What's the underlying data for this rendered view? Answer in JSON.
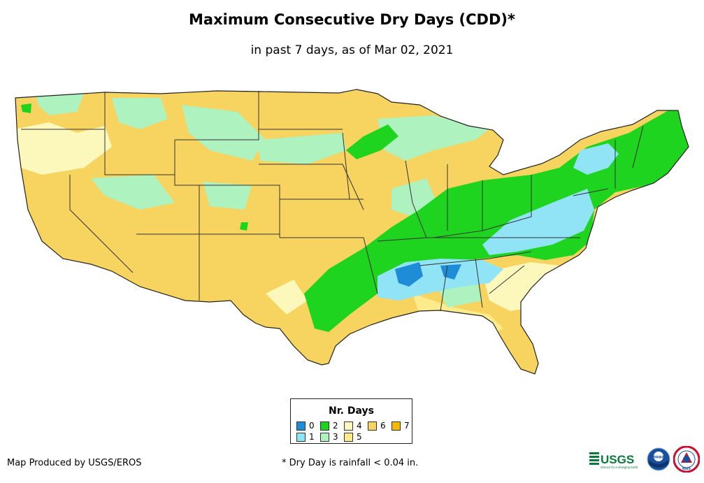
{
  "title": "Maximum Consecutive Dry Days (CDD)*",
  "subtitle": "in past 7 days, as of Mar 02, 2021",
  "legend": {
    "title": "Nr. Days",
    "items": [
      {
        "label": "0",
        "color": "#1e8cd6"
      },
      {
        "label": "1",
        "color": "#90e4f6"
      },
      {
        "label": "2",
        "color": "#1ed41e"
      },
      {
        "label": "3",
        "color": "#aef2c0"
      },
      {
        "label": "4",
        "color": "#fcf8bc"
      },
      {
        "label": "5",
        "color": "#fceb8a"
      },
      {
        "label": "6",
        "color": "#f7d35f"
      },
      {
        "label": "7",
        "color": "#f7b800"
      }
    ]
  },
  "footer": {
    "producer": "Map Produced by USGS/EROS",
    "note": "* Dry Day is rainfall < 0.04 in."
  },
  "logos": {
    "usgs": {
      "text": "USGS",
      "tagline": "science for a changing world"
    },
    "noaa": {
      "text": "noaa"
    },
    "nws": {
      "text": "NWS"
    }
  },
  "map": {
    "region": "Conterminous United States",
    "base_color": "#f7d35f",
    "zones": [
      {
        "value": 2,
        "color": "#1ed41e"
      },
      {
        "value": 1,
        "color": "#90e4f6"
      },
      {
        "value": 0,
        "color": "#1e8cd6"
      },
      {
        "value": 3,
        "color": "#aef2c0"
      },
      {
        "value": 4,
        "color": "#fcf8bc"
      },
      {
        "value": 5,
        "color": "#fceb8a"
      }
    ]
  }
}
